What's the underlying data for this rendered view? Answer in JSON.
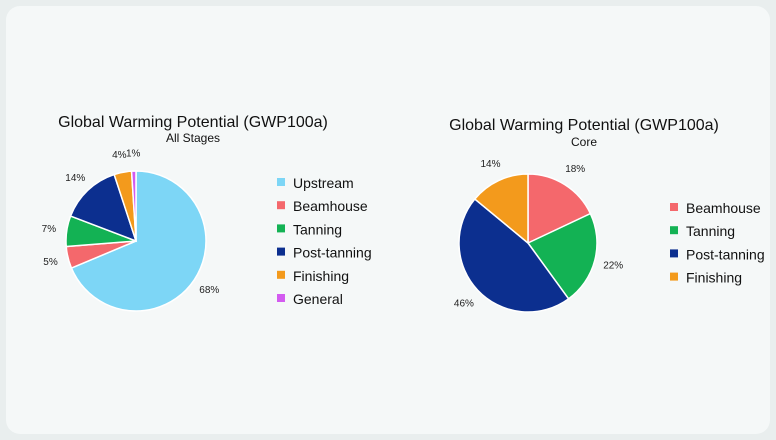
{
  "colors": {
    "Upstream": "#7dd6f6",
    "Beamhouse": "#f4686c",
    "Tanning": "#13b254",
    "Post-tanning": "#0c2f8f",
    "Finishing": "#f39a1c",
    "General": "#d35bf0"
  },
  "chart_data": [
    {
      "type": "pie",
      "title": "Global Warming Potential (GWP100a)",
      "subtitle": "All Stages",
      "categories": [
        "Upstream",
        "Beamhouse",
        "Tanning",
        "Post-tanning",
        "Finishing",
        "General"
      ],
      "values": [
        68,
        5,
        7,
        14,
        4,
        1
      ],
      "labels": [
        "68%",
        "5%",
        "7%",
        "14%",
        "4%",
        "1%"
      ],
      "legend_position": "right"
    },
    {
      "type": "pie",
      "title": "Global Warming Potential (GWP100a)",
      "subtitle": "Core",
      "categories": [
        "Beamhouse",
        "Tanning",
        "Post-tanning",
        "Finishing"
      ],
      "values": [
        18,
        22,
        46,
        14
      ],
      "labels": [
        "18%",
        "22%",
        "46%",
        "14%"
      ],
      "legend_position": "right"
    }
  ]
}
